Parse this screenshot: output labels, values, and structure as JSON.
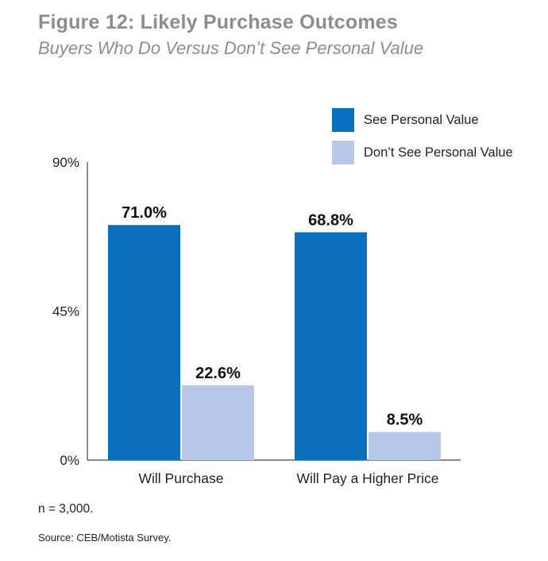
{
  "header": {
    "title": "Figure 12: Likely Purchase Outcomes",
    "subtitle": "Buyers Who Do Versus Don’t See Personal Value"
  },
  "chart_data": {
    "type": "bar",
    "categories": [
      "Will Purchase",
      "Will Pay a Higher Price"
    ],
    "series": [
      {
        "name": "See Personal Value",
        "values": [
          71.0,
          68.8
        ],
        "labels": [
          "71.0%",
          "68.8%"
        ],
        "color": "#0a6fbd"
      },
      {
        "name": "Don’t See Personal Value",
        "values": [
          22.6,
          8.5
        ],
        "labels": [
          "22.6%",
          "8.5%"
        ],
        "color": "#b8c8ea"
      }
    ],
    "ylim": [
      0,
      90
    ],
    "yticks": [
      0,
      45,
      90
    ],
    "ytick_labels": [
      "0%",
      "45%",
      "90%"
    ],
    "grid": false,
    "legend_position": "top-right"
  },
  "footer": {
    "note": "n = 3,000.",
    "source": "Source: CEB/Motista Survey."
  }
}
